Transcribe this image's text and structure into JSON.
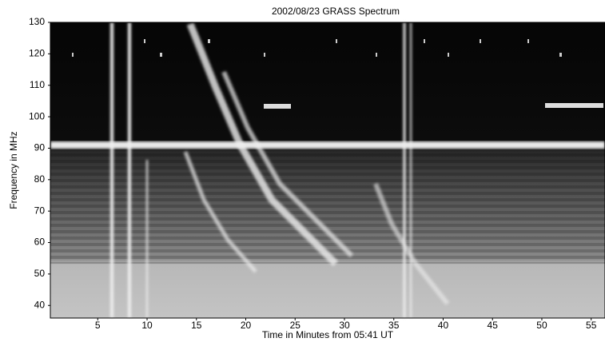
{
  "chart_data": {
    "type": "spectrogram",
    "title": "2002/08/23  GRASS Spectrum",
    "x_label": "Time in Minutes from 05:41 UT",
    "y_label": "Frequency in MHz",
    "xlim": [
      0.2,
      56.4
    ],
    "xticks": [
      5,
      10,
      15,
      20,
      25,
      30,
      35,
      40,
      45,
      50,
      55
    ],
    "ylim": [
      36,
      130
    ],
    "yticks": [
      40,
      50,
      60,
      70,
      80,
      90,
      100,
      110,
      120,
      130
    ]
  }
}
